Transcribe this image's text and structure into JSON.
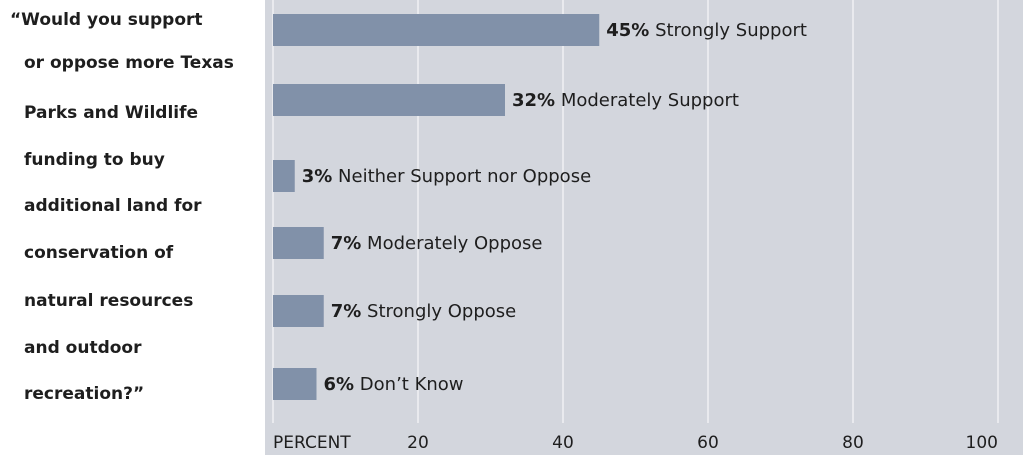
{
  "question": {
    "lines": [
      "“Would you support",
      "or oppose more Texas",
      "Parks and Wildlife",
      "funding to buy",
      "additional land for",
      "conservation of",
      "natural resources",
      "and outdoor",
      "recreation?”"
    ]
  },
  "chart_data": {
    "type": "bar",
    "orientation": "horizontal",
    "categories": [
      "Strongly Support",
      "Moderately Support",
      "Neither Support nor Oppose",
      "Moderately Oppose",
      "Strongly Oppose",
      "Don’t Know"
    ],
    "values": [
      45,
      32,
      3,
      7,
      7,
      6
    ],
    "value_labels": [
      "45%",
      "32%",
      "3%",
      "7%",
      "7%",
      "6%"
    ],
    "xlabel": "PERCENT",
    "xlim": [
      0,
      100
    ],
    "xticks": [
      20,
      40,
      60,
      80,
      100
    ],
    "grid": true,
    "colors": {
      "bar": "#8191a9",
      "background": "#d3d6dd",
      "grid": "#ffffff"
    }
  }
}
